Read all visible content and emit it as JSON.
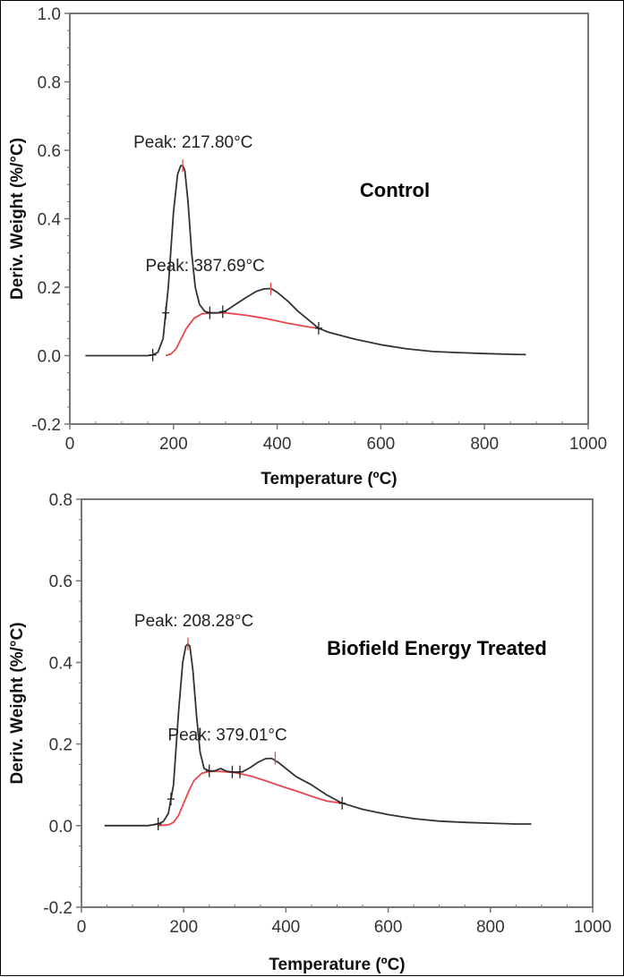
{
  "chart_data": [
    {
      "type": "line",
      "title": "Control",
      "xlabel": "Temperature (ºC)",
      "ylabel": "Deriv. Weight (%/°C)",
      "xlim": [
        0,
        1000
      ],
      "ylim": [
        -0.2,
        1.0
      ],
      "xticks": [
        0,
        200,
        400,
        600,
        800,
        1000
      ],
      "yticks": [
        -0.2,
        0.0,
        0.2,
        0.4,
        0.6,
        0.8,
        1.0
      ],
      "ytick_labels": [
        "-0.2",
        "0.0",
        "0.2",
        "0.4",
        "0.6",
        "0.8",
        "1.0"
      ],
      "grid": false,
      "colors": {
        "curve": "#333333",
        "baseline": "#e8464a"
      },
      "annotations": [
        {
          "text": "Peak: 217.80°C",
          "x": 217.8,
          "y": 0.555
        },
        {
          "text": "Peak: 387.69°C",
          "x": 387.69,
          "y": 0.195
        }
      ],
      "markers": [
        160,
        185,
        270,
        295,
        480
      ],
      "series": [
        {
          "x": [
            30,
            150,
            160,
            170,
            180,
            190,
            200,
            208,
            214,
            218,
            222,
            228,
            235,
            242,
            250,
            260,
            270,
            285,
            300,
            320,
            340,
            360,
            375,
            388,
            400,
            420,
            440,
            460,
            480,
            500,
            550,
            600,
            650,
            700,
            750,
            800,
            850,
            880
          ],
          "y": [
            0,
            0,
            0.002,
            0.01,
            0.05,
            0.2,
            0.42,
            0.53,
            0.555,
            0.555,
            0.54,
            0.45,
            0.3,
            0.2,
            0.15,
            0.13,
            0.125,
            0.125,
            0.13,
            0.15,
            0.17,
            0.188,
            0.195,
            0.196,
            0.185,
            0.16,
            0.13,
            0.105,
            0.08,
            0.068,
            0.048,
            0.032,
            0.02,
            0.012,
            0.009,
            0.006,
            0.004,
            0.003
          ]
        },
        {
          "x": [
            185,
            195,
            205,
            215,
            225,
            240,
            255,
            270,
            300,
            340,
            380,
            420,
            460,
            480
          ],
          "y": [
            0,
            0.005,
            0.02,
            0.05,
            0.08,
            0.11,
            0.122,
            0.125,
            0.125,
            0.118,
            0.108,
            0.095,
            0.084,
            0.08
          ]
        }
      ]
    },
    {
      "type": "line",
      "title": "Biofield Energy Treated",
      "xlabel": "Temperature (ºC)",
      "ylabel": "Deriv. Weight (%/°C)",
      "xlim": [
        0,
        1000
      ],
      "ylim": [
        -0.2,
        0.8
      ],
      "xticks": [
        0,
        200,
        400,
        600,
        800,
        1000
      ],
      "yticks": [
        -0.2,
        0.0,
        0.2,
        0.4,
        0.6,
        0.8
      ],
      "ytick_labels": [
        "-0.2",
        "0.0",
        "0.2",
        "0.4",
        "0.6",
        "0.8"
      ],
      "grid": false,
      "colors": {
        "curve": "#333333",
        "baseline": "#e8464a"
      },
      "annotations": [
        {
          "text": "Peak: 208.28°C",
          "x": 208.28,
          "y": 0.445
        },
        {
          "text": "Peak: 379.01°C",
          "x": 379.01,
          "y": 0.165
        }
      ],
      "markers": [
        150,
        175,
        250,
        295,
        310,
        510
      ],
      "series": [
        {
          "x": [
            45,
            130,
            150,
            160,
            170,
            180,
            190,
            198,
            204,
            208,
            212,
            218,
            225,
            232,
            240,
            250,
            260,
            272,
            285,
            300,
            315,
            330,
            345,
            360,
            372,
            385,
            400,
            420,
            450,
            480,
            510,
            550,
            600,
            650,
            700,
            750,
            800,
            850,
            880
          ],
          "y": [
            0,
            0,
            0.004,
            0.01,
            0.03,
            0.1,
            0.28,
            0.4,
            0.44,
            0.445,
            0.44,
            0.38,
            0.27,
            0.18,
            0.14,
            0.134,
            0.134,
            0.14,
            0.133,
            0.131,
            0.132,
            0.142,
            0.155,
            0.164,
            0.165,
            0.155,
            0.14,
            0.12,
            0.1,
            0.075,
            0.055,
            0.04,
            0.027,
            0.017,
            0.011,
            0.008,
            0.006,
            0.004,
            0.004
          ]
        },
        {
          "x": [
            150,
            170,
            180,
            190,
            200,
            210,
            220,
            235,
            250,
            270,
            300,
            330,
            360,
            390,
            420,
            450,
            480,
            510
          ],
          "y": [
            0,
            0.002,
            0.008,
            0.025,
            0.055,
            0.085,
            0.11,
            0.128,
            0.133,
            0.133,
            0.13,
            0.122,
            0.11,
            0.097,
            0.085,
            0.072,
            0.06,
            0.055
          ]
        }
      ]
    }
  ]
}
